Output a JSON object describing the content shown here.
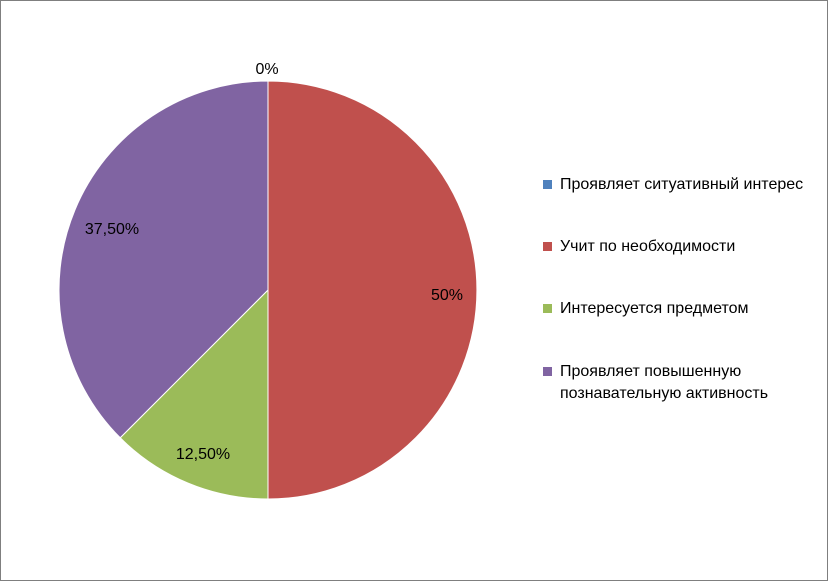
{
  "chart_data": {
    "type": "pie",
    "title": "",
    "categories": [
      "Проявляет ситуативный интерес",
      "Учит по необходимости",
      "Интересуется предметом",
      "Проявляет повышенную познавательную активность"
    ],
    "values": [
      0,
      50,
      12.5,
      37.5
    ],
    "data_labels": [
      "0%",
      "50%",
      "12,50%",
      "37,50%"
    ],
    "colors": [
      "#4F81BD",
      "#C0504D",
      "#9BBB59",
      "#8064A2"
    ],
    "legend_placement": "right"
  }
}
